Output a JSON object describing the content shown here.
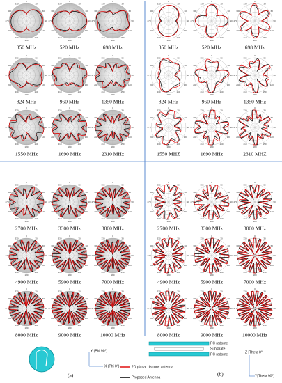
{
  "figure": {
    "left_panels": [
      "350 MHz",
      "520 MHz",
      "698 MHz",
      "824 MHz",
      "960 MHz",
      "1350 MHz",
      "1550 MHz",
      "1690 MHz",
      "2310 MHz",
      "2700 MHz",
      "3300 MHz",
      "3800 MHz",
      "4900 MHz",
      "5900 MHz",
      "7000 MHz",
      "8000 MHz",
      "9000 MHz",
      "10000 MHz"
    ],
    "right_panels": [
      "350 MHz",
      "520 MHz",
      "698 MHz",
      "824 MHz",
      "960 MHz",
      "1350 MHz",
      "1550 MHZ",
      "1690 MHz",
      "2310 MHZ",
      "2700 MHz",
      "3300 MHz",
      "3800 MHz",
      "4900 MHz",
      "5900 MHz",
      "7000 MHz",
      "8000 MHz",
      "9000 MHz",
      "10000 MHz"
    ],
    "angle_labels": [
      "0",
      "30",
      "60",
      "90",
      "120",
      "150",
      "180",
      "210",
      "240",
      "270",
      "300",
      "330"
    ],
    "caption_a": "(a)",
    "caption_b": "(b)",
    "axes_a": {
      "y": "Y (Phi 90°)",
      "x": "X (Phi 0°)"
    },
    "layers": [
      "PC radome",
      "Substrate",
      "PC radome"
    ],
    "legend": [
      "2D planar discone antenna",
      "Proposed Antenna"
    ],
    "axes_b": {
      "z": "Z [Theta 0°]",
      "y": "Y[Theta 90°]"
    }
  }
}
